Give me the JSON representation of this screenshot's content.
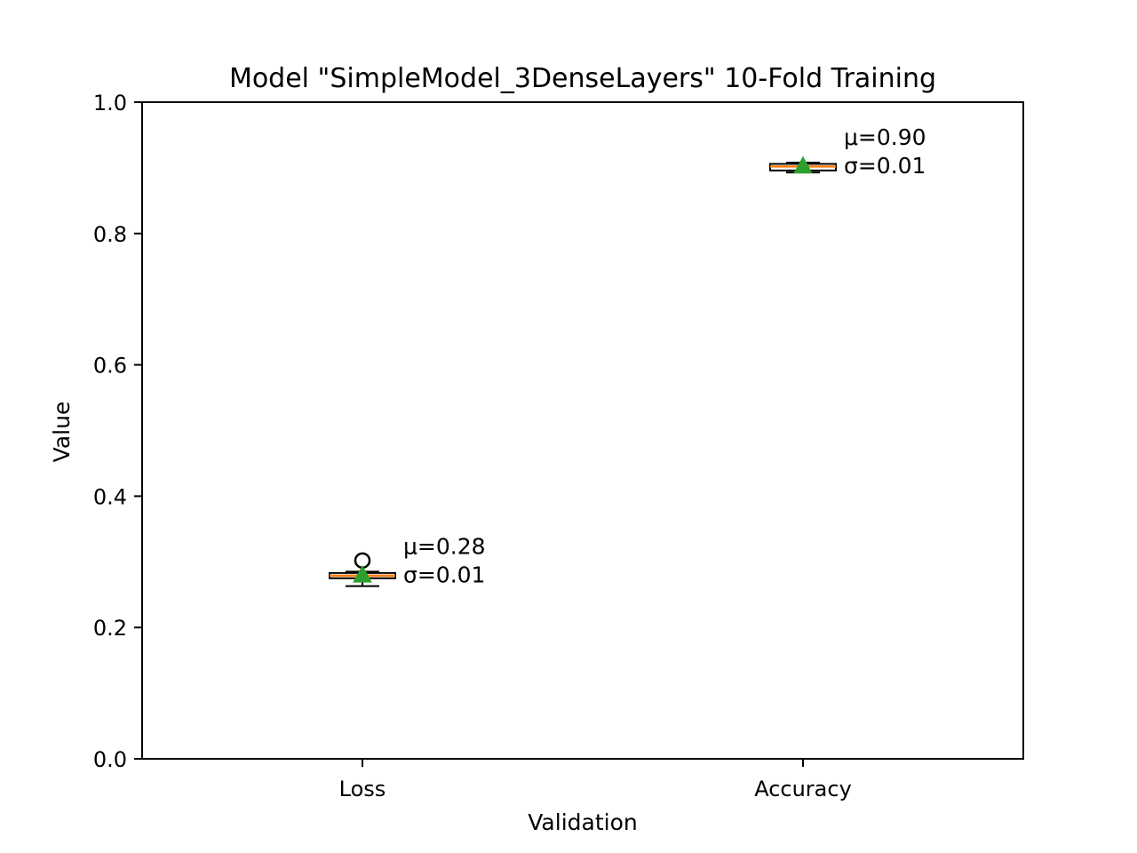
{
  "chart_data": {
    "type": "box",
    "title": "Model \"SimpleModel_3DenseLayers\" 10-Fold Training",
    "xlabel": "Validation",
    "ylabel": "Value",
    "ylim": [
      0.0,
      1.0
    ],
    "yticks": [
      0.0,
      0.2,
      0.4,
      0.6,
      0.8,
      1.0
    ],
    "ytick_labels": [
      "0.0",
      "0.2",
      "0.4",
      "0.6",
      "0.8",
      "1.0"
    ],
    "categories": [
      "Loss",
      "Accuracy"
    ],
    "grid": false,
    "legend": "none",
    "colors": {
      "box_edge": "#000000",
      "median": "#ff7f0e",
      "mean_marker": "#2ca02c",
      "axes": "#000000"
    },
    "boxes": [
      {
        "category": "Loss",
        "whisker_low": 0.263,
        "q1": 0.275,
        "median": 0.279,
        "q3": 0.283,
        "whisker_high": 0.285,
        "mean": 0.28,
        "outliers": [
          0.302
        ],
        "annotation": [
          "μ=0.28",
          "σ=0.01"
        ]
      },
      {
        "category": "Accuracy",
        "whisker_low": 0.893,
        "q1": 0.896,
        "median": 0.902,
        "q3": 0.906,
        "whisker_high": 0.908,
        "mean": 0.903,
        "outliers": [],
        "annotation": [
          "μ=0.90",
          "σ=0.01"
        ]
      }
    ]
  }
}
